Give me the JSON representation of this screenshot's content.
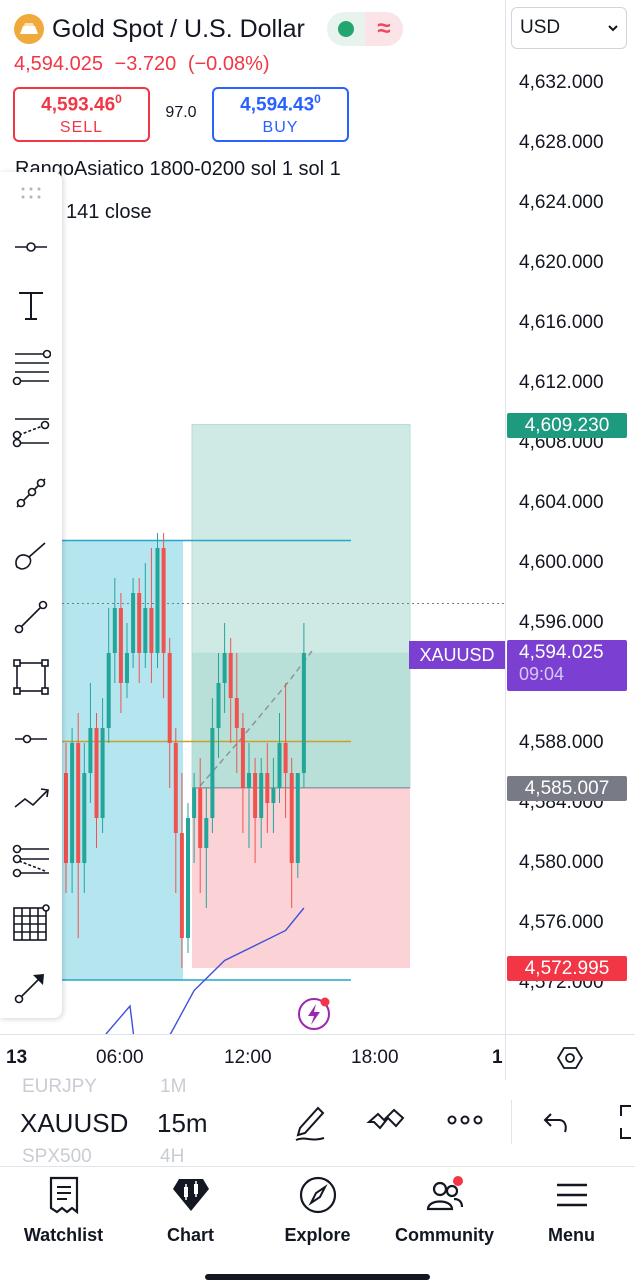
{
  "header": {
    "title": "Gold Spot / U.S. Dollar",
    "status_wave": "≈",
    "last_price": "4,594.025",
    "change": "−3.720",
    "change_pct": "(−0.08%)",
    "sell_price": "4,593.46",
    "sell_price_sup": "0",
    "sell_label": "SELL",
    "spread": "97.0",
    "buy_price": "4,594.43",
    "buy_price_sup": "0",
    "buy_label": "BUY",
    "indicator_1": "RangoAsiatico 1800-0200 sol 1 sol 1",
    "indicator_2": "141 close"
  },
  "currency_select": {
    "value": "USD"
  },
  "price_axis": {
    "ticks": [
      "4,632.000",
      "4,628.000",
      "4,624.000",
      "4,620.000",
      "4,616.000",
      "4,612.000",
      "4,608.000",
      "4,604.000",
      "4,600.000",
      "4,596.000",
      "4,588.000",
      "4,584.000",
      "4,580.000",
      "4,576.000",
      "4,572.000"
    ],
    "tag_take_profit": "4,609.230",
    "tag_current": "4,594.025",
    "tag_countdown": "09:04",
    "tag_entry": "4,585.007",
    "tag_stop": "4,572.995",
    "symbol_tag": "XAUUSD"
  },
  "time_axis": {
    "ticks": [
      "13",
      "06:00",
      "12:00",
      "18:00",
      "1"
    ]
  },
  "symbol_bar": {
    "symbol": "XAUUSD",
    "interval": "15m",
    "ghost_symbol_above": "EURJPY",
    "ghost_interval_above": "1M",
    "ghost_symbol_below": "SPX500",
    "ghost_interval_below": "4H"
  },
  "nav": {
    "watchlist": "Watchlist",
    "chart": "Chart",
    "explore": "Explore",
    "community": "Community",
    "menu": "Menu"
  },
  "colors": {
    "up": "#22a69a",
    "down": "#ef5350",
    "take_profit_zone": "#cfe9e4",
    "stop_zone": "#fbd3d6",
    "asian_range": "#b5e6f0",
    "symbol_tag": "#7b3fd1",
    "sell": "#f23645",
    "buy": "#2962ff"
  },
  "chart_data": {
    "type": "candlestick",
    "y_range": [
      4570,
      4634
    ],
    "candles": [
      {
        "o": 4586,
        "h": 4588,
        "c": 4580,
        "l": 4578
      },
      {
        "o": 4580,
        "h": 4589,
        "c": 4588,
        "l": 4578
      },
      {
        "o": 4588,
        "h": 4590,
        "c": 4580,
        "l": 4575
      },
      {
        "o": 4580,
        "h": 4588,
        "c": 4586,
        "l": 4578
      },
      {
        "o": 4586,
        "h": 4592,
        "c": 4589,
        "l": 4584
      },
      {
        "o": 4589,
        "h": 4590,
        "c": 4583,
        "l": 4581
      },
      {
        "o": 4583,
        "h": 4591,
        "c": 4589,
        "l": 4582
      },
      {
        "o": 4589,
        "h": 4597,
        "c": 4594,
        "l": 4588
      },
      {
        "o": 4594,
        "h": 4599,
        "c": 4597,
        "l": 4592
      },
      {
        "o": 4597,
        "h": 4598,
        "c": 4592,
        "l": 4590
      },
      {
        "o": 4592,
        "h": 4596,
        "c": 4594,
        "l": 4591
      },
      {
        "o": 4594,
        "h": 4599,
        "c": 4598,
        "l": 4593
      },
      {
        "o": 4598,
        "h": 4599,
        "c": 4594,
        "l": 4592
      },
      {
        "o": 4594,
        "h": 4600,
        "c": 4597,
        "l": 4593
      },
      {
        "o": 4597,
        "h": 4601,
        "c": 4594,
        "l": 4592
      },
      {
        "o": 4594,
        "h": 4602,
        "c": 4601,
        "l": 4593
      },
      {
        "o": 4601,
        "h": 4602,
        "c": 4594,
        "l": 4591
      },
      {
        "o": 4594,
        "h": 4595,
        "c": 4588,
        "l": 4585
      },
      {
        "o": 4588,
        "h": 4589,
        "c": 4582,
        "l": 4578
      },
      {
        "o": 4582,
        "h": 4586,
        "c": 4575,
        "l": 4573
      },
      {
        "o": 4575,
        "h": 4584,
        "c": 4583,
        "l": 4574
      },
      {
        "o": 4583,
        "h": 4586,
        "c": 4585,
        "l": 4580
      },
      {
        "o": 4585,
        "h": 4587,
        "c": 4581,
        "l": 4578
      },
      {
        "o": 4581,
        "h": 4585,
        "c": 4583,
        "l": 4577
      },
      {
        "o": 4583,
        "h": 4591,
        "c": 4589,
        "l": 4582
      },
      {
        "o": 4589,
        "h": 4594,
        "c": 4592,
        "l": 4587
      },
      {
        "o": 4592,
        "h": 4596,
        "c": 4594,
        "l": 4590
      },
      {
        "o": 4594,
        "h": 4595,
        "c": 4591,
        "l": 4588
      },
      {
        "o": 4591,
        "h": 4594,
        "c": 4589,
        "l": 4586
      },
      {
        "o": 4589,
        "h": 4590,
        "c": 4585,
        "l": 4582
      },
      {
        "o": 4585,
        "h": 4588,
        "c": 4586,
        "l": 4581
      },
      {
        "o": 4586,
        "h": 4587,
        "c": 4583,
        "l": 4580
      },
      {
        "o": 4583,
        "h": 4587,
        "c": 4586,
        "l": 4581
      },
      {
        "o": 4586,
        "h": 4588,
        "c": 4584,
        "l": 4582
      },
      {
        "o": 4584,
        "h": 4587,
        "c": 4585,
        "l": 4582
      },
      {
        "o": 4585,
        "h": 4590,
        "c": 4588,
        "l": 4584
      },
      {
        "o": 4588,
        "h": 4592,
        "c": 4586,
        "l": 4583
      },
      {
        "o": 4586,
        "h": 4587,
        "c": 4580,
        "l": 4577
      },
      {
        "o": 4580,
        "h": 4586,
        "c": 4586,
        "l": 4579
      },
      {
        "o": 4586,
        "h": 4596,
        "c": 4594,
        "l": 4585
      }
    ],
    "moving_average": [
      {
        "i": 12,
        "v": 4565.5
      },
      {
        "i": 17,
        "v": 4568.5
      },
      {
        "i": 21,
        "v": 4571.5
      },
      {
        "i": 26,
        "v": 4573.5
      },
      {
        "i": 31,
        "v": 4574.5
      },
      {
        "i": 36,
        "v": 4575.5
      },
      {
        "i": 39,
        "v": 4577
      }
    ],
    "take_profit": 4609.23,
    "entry": 4585.007,
    "stop_loss": 4572.995,
    "current_price": 4594.025,
    "range_high": 4601.5,
    "range_mid": 4588.1,
    "range_low": 4572.2
  }
}
